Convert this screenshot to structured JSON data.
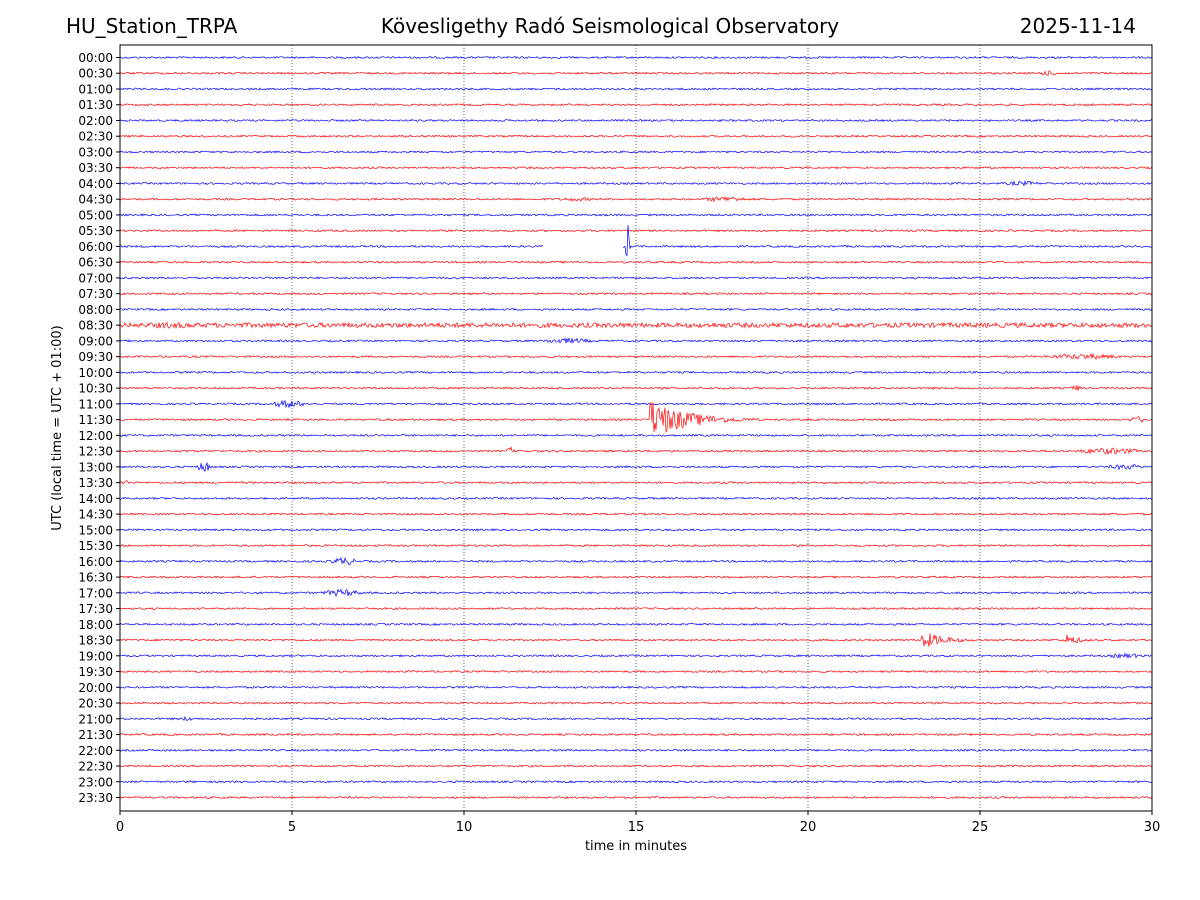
{
  "header": {
    "station": "HU_Station_TRPA",
    "observatory": "Kövesligethy Radó Seismological Observatory",
    "date": "2025-11-14"
  },
  "chart_data": {
    "type": "line",
    "title": "Kövesligethy Radó Seismological Observatory",
    "xlabel": "time in minutes",
    "ylabel": "UTC (local time = UTC + 01:00)",
    "xlim": [
      0,
      30
    ],
    "xticks": [
      0,
      5,
      10,
      15,
      20,
      25,
      30
    ],
    "grid": "vertical dotted at x ticks",
    "row_labels": [
      "00:00",
      "00:30",
      "01:00",
      "01:30",
      "02:00",
      "02:30",
      "03:00",
      "03:30",
      "04:00",
      "04:30",
      "05:00",
      "05:30",
      "06:00",
      "06:30",
      "07:00",
      "07:30",
      "08:00",
      "08:30",
      "09:00",
      "09:30",
      "10:00",
      "10:30",
      "11:00",
      "11:30",
      "12:00",
      "12:30",
      "13:00",
      "13:30",
      "14:00",
      "14:30",
      "15:00",
      "15:30",
      "16:00",
      "16:30",
      "17:00",
      "17:30",
      "18:00",
      "18:30",
      "19:00",
      "19:30",
      "20:00",
      "20:30",
      "21:00",
      "21:30",
      "22:00",
      "22:30",
      "23:00",
      "23:30"
    ],
    "colors": {
      "even_rows": "#0000ff",
      "odd_rows": "#ff0000",
      "grid": "#000000"
    },
    "noise_amplitude": 0.12,
    "noisy_rows": [
      {
        "row": "08:30",
        "amplitude": 0.3
      }
    ],
    "events": [
      {
        "row": "00:30",
        "start": 26.5,
        "end": 27.5,
        "amplitude": 0.3
      },
      {
        "row": "04:00",
        "start": 25.5,
        "end": 27.0,
        "amplitude": 0.3
      },
      {
        "row": "04:30",
        "start": 12.5,
        "end": 14.0,
        "amplitude": 0.25
      },
      {
        "row": "04:30",
        "start": 16.7,
        "end": 18.5,
        "amplitude": 0.35
      },
      {
        "row": "06:00",
        "start": 14.7,
        "end": 14.9,
        "amplitude": 4.5,
        "kind": "spike"
      },
      {
        "row": "08:30",
        "start": 0.0,
        "end": 3.0,
        "amplitude": 0.4
      },
      {
        "row": "09:00",
        "start": 12.0,
        "end": 14.0,
        "amplitude": 0.35
      },
      {
        "row": "09:30",
        "start": 26.5,
        "end": 29.5,
        "amplitude": 0.35
      },
      {
        "row": "10:30",
        "start": 27.6,
        "end": 28.0,
        "amplitude": 0.4
      },
      {
        "row": "11:00",
        "start": 4.3,
        "end": 5.5,
        "amplitude": 0.5
      },
      {
        "row": "11:30",
        "start": 15.4,
        "end": 19.0,
        "amplitude": 2.6,
        "kind": "quake"
      },
      {
        "row": "11:30",
        "start": 29.2,
        "end": 30.0,
        "amplitude": 0.4
      },
      {
        "row": "12:30",
        "start": 11.2,
        "end": 11.5,
        "amplitude": 0.5
      },
      {
        "row": "12:30",
        "start": 27.5,
        "end": 30.0,
        "amplitude": 0.4
      },
      {
        "row": "13:00",
        "start": 2.2,
        "end": 2.7,
        "amplitude": 0.7
      },
      {
        "row": "13:00",
        "start": 28.5,
        "end": 30.0,
        "amplitude": 0.35
      },
      {
        "row": "13:30",
        "start": 0.0,
        "end": 0.3,
        "amplitude": 0.4
      },
      {
        "row": "16:00",
        "start": 6.0,
        "end": 7.0,
        "amplitude": 0.5
      },
      {
        "row": "17:00",
        "start": 5.7,
        "end": 7.2,
        "amplitude": 0.45
      },
      {
        "row": "18:30",
        "start": 23.3,
        "end": 25.5,
        "amplitude": 1.2,
        "kind": "quake"
      },
      {
        "row": "18:30",
        "start": 27.5,
        "end": 28.8,
        "amplitude": 0.8,
        "kind": "quake"
      },
      {
        "row": "19:00",
        "start": 28.5,
        "end": 30.0,
        "amplitude": 0.3
      },
      {
        "row": "21:00",
        "start": 1.7,
        "end": 2.2,
        "amplitude": 0.3
      }
    ],
    "gaps": [
      {
        "row": "06:00",
        "start": 12.3,
        "end": 14.6
      }
    ]
  }
}
